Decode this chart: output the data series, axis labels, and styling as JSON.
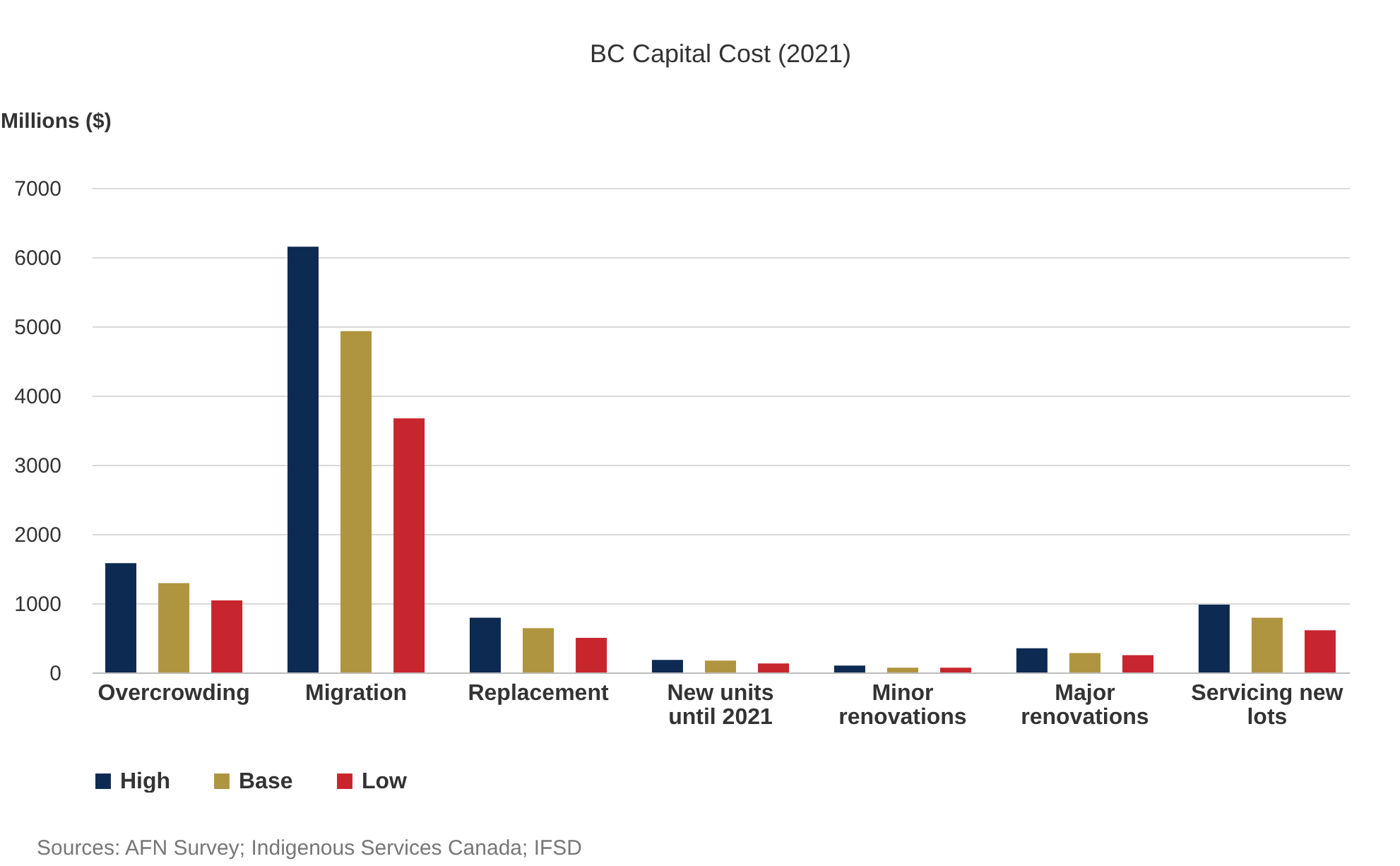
{
  "chart_data": {
    "type": "bar",
    "title": "BC Capital Cost (2021)",
    "ylabel": "Millions ($)",
    "categories": [
      "Overcrowding",
      "Migration",
      "Replacement",
      "New units until 2021",
      "Minor renovations",
      "Major renovations",
      "Servicing new lots"
    ],
    "series": [
      {
        "name": "High",
        "color": "#0d2a52",
        "values": [
          1580,
          6150,
          790,
          180,
          100,
          350,
          980
        ]
      },
      {
        "name": "Base",
        "color": "#b09540",
        "values": [
          1290,
          4930,
          640,
          170,
          70,
          280,
          790
        ]
      },
      {
        "name": "Low",
        "color": "#c8262e",
        "values": [
          1040,
          3670,
          500,
          130,
          70,
          250,
          610
        ]
      }
    ],
    "ylim": [
      0,
      7000
    ],
    "yticks": [
      0,
      1000,
      2000,
      3000,
      4000,
      5000,
      6000,
      7000
    ],
    "grid": "y",
    "legend": "bottom",
    "annotations": [
      "Sources: AFN Survey; Indigenous Services Canada; IFSD"
    ]
  }
}
